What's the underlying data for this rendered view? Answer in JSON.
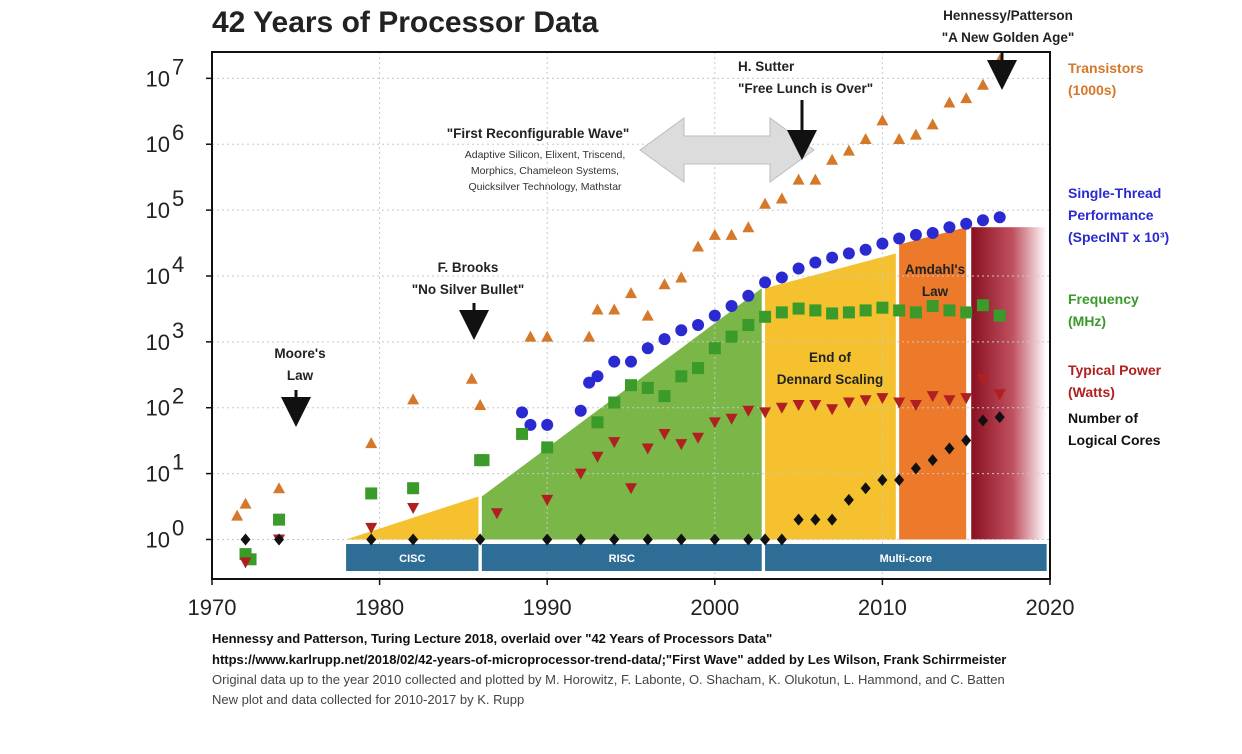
{
  "chart_data": {
    "type": "scatter",
    "title": "42 Years of Processor Data",
    "xlim": [
      1970,
      2020
    ],
    "ylim_log10": [
      -0.6,
      7.4
    ],
    "x_ticks": [
      "1970",
      "1980",
      "1990",
      "2000",
      "2010",
      "2020"
    ],
    "y_ticks": [
      {
        "base": "10",
        "exp": "0"
      },
      {
        "base": "10",
        "exp": "1"
      },
      {
        "base": "10",
        "exp": "2"
      },
      {
        "base": "10",
        "exp": "3"
      },
      {
        "base": "10",
        "exp": "4"
      },
      {
        "base": "10",
        "exp": "5"
      },
      {
        "base": "10",
        "exp": "6"
      },
      {
        "base": "10",
        "exp": "7"
      }
    ],
    "legend": [
      {
        "lines": [
          "Transistors",
          "(1000s)"
        ],
        "color": "#d4782a"
      },
      {
        "lines": [
          "Single-Thread",
          "Performance",
          "(SpecINT x 10³)"
        ],
        "color": "#2a2ad0"
      },
      {
        "lines": [
          "Frequency",
          "(MHz)"
        ],
        "color": "#3a9a2a"
      },
      {
        "lines": [
          "Typical Power",
          "(Watts)"
        ],
        "color": "#b02020"
      },
      {
        "lines": [
          "Number of",
          "Logical Cores"
        ],
        "color": "#111111"
      }
    ],
    "eras": [
      {
        "label": "CISC",
        "from": 1978,
        "to": 1985.9
      },
      {
        "label": "RISC",
        "from": 1986.1,
        "to": 2002.8
      },
      {
        "label": "Multi-core",
        "from": 2003,
        "to": 2019.8
      }
    ],
    "region_labels": {
      "dennard": [
        "End of",
        "Dennard Scaling"
      ],
      "amdahl": [
        "Amdahl's",
        "Law"
      ]
    },
    "annotations": {
      "moore": [
        "Moore's",
        "Law"
      ],
      "brooks": [
        "F. Brooks",
        "\"No Silver Bullet\""
      ],
      "sutter": [
        "H. Sutter",
        "\"Free Lunch is Over\""
      ],
      "hp": [
        "Hennessy/Patterson",
        "\"A New Golden Age\""
      ],
      "wave_title": "\"First Reconfigurable Wave\"",
      "wave_lines": [
        "Adaptive Silicon, Elixent, Triscend,",
        "Morphics, Chameleon Systems,",
        "Quicksilver Technology, Mathstar"
      ]
    },
    "series": [
      {
        "name": "Transistors (1000s)",
        "color": "#d4782a",
        "marker": "triangle",
        "points": [
          [
            1971.5,
            2.3
          ],
          [
            1972,
            3.5
          ],
          [
            1974,
            6
          ],
          [
            1979.5,
            29
          ],
          [
            1982,
            134
          ],
          [
            1985.5,
            275
          ],
          [
            1986,
            110
          ],
          [
            1989,
            1200
          ],
          [
            1990,
            1200
          ],
          [
            1992.5,
            1200
          ],
          [
            1993,
            3100
          ],
          [
            1994,
            3100
          ],
          [
            1995,
            5500
          ],
          [
            1996,
            2500
          ],
          [
            1997,
            7500
          ],
          [
            1998,
            9500
          ],
          [
            1999,
            28000
          ],
          [
            2000,
            42000
          ],
          [
            2001,
            42000
          ],
          [
            2002,
            55000
          ],
          [
            2003,
            125000
          ],
          [
            2004,
            150000
          ],
          [
            2005,
            290000
          ],
          [
            2006,
            290000
          ],
          [
            2007,
            580000
          ],
          [
            2008,
            800000
          ],
          [
            2009,
            1200000
          ],
          [
            2010,
            2300000
          ],
          [
            2011,
            1200000
          ],
          [
            2012,
            1400000
          ],
          [
            2013,
            2000000
          ],
          [
            2014,
            4300000
          ],
          [
            2015,
            5000000
          ],
          [
            2016,
            8000000
          ],
          [
            2017,
            19000000
          ]
        ]
      },
      {
        "name": "Single-Thread Performance",
        "color": "#2a2ad0",
        "marker": "circle",
        "points": [
          [
            1988.5,
            85
          ],
          [
            1989,
            55
          ],
          [
            1990,
            55
          ],
          [
            1992,
            90
          ],
          [
            1992.5,
            240
          ],
          [
            1993,
            300
          ],
          [
            1994,
            500
          ],
          [
            1995,
            500
          ],
          [
            1996,
            800
          ],
          [
            1997,
            1100
          ],
          [
            1998,
            1500
          ],
          [
            1999,
            1800
          ],
          [
            2000,
            2500
          ],
          [
            2001,
            3500
          ],
          [
            2002,
            5000
          ],
          [
            2003,
            8000
          ],
          [
            2004,
            9500
          ],
          [
            2005,
            13000
          ],
          [
            2006,
            16000
          ],
          [
            2007,
            19000
          ],
          [
            2008,
            22000
          ],
          [
            2009,
            25000
          ],
          [
            2010,
            31000
          ],
          [
            2011,
            37000
          ],
          [
            2012,
            42000
          ],
          [
            2013,
            45000
          ],
          [
            2014,
            55000
          ],
          [
            2015,
            62000
          ],
          [
            2016,
            70000
          ],
          [
            2017,
            78000
          ]
        ]
      },
      {
        "name": "Frequency (MHz)",
        "color": "#3a9a2a",
        "marker": "square",
        "points": [
          [
            1972,
            0.6
          ],
          [
            1972.3,
            0.5
          ],
          [
            1974,
            2
          ],
          [
            1979.5,
            5
          ],
          [
            1982,
            6
          ],
          [
            1986,
            16
          ],
          [
            1986.2,
            16
          ],
          [
            1988.5,
            40
          ],
          [
            1990,
            25
          ],
          [
            1993,
            60
          ],
          [
            1994,
            120
          ],
          [
            1995,
            220
          ],
          [
            1996,
            200
          ],
          [
            1997,
            150
          ],
          [
            1998,
            300
          ],
          [
            1999,
            400
          ],
          [
            2000,
            800
          ],
          [
            2001,
            1200
          ],
          [
            2002,
            1800
          ],
          [
            2003,
            2400
          ],
          [
            2004,
            2800
          ],
          [
            2005,
            3200
          ],
          [
            2006,
            3000
          ],
          [
            2007,
            2700
          ],
          [
            2008,
            2800
          ],
          [
            2009,
            3000
          ],
          [
            2010,
            3300
          ],
          [
            2011,
            3000
          ],
          [
            2012,
            2800
          ],
          [
            2013,
            3500
          ],
          [
            2014,
            3000
          ],
          [
            2015,
            2800
          ],
          [
            2016,
            3600
          ],
          [
            2017,
            2500
          ]
        ]
      },
      {
        "name": "Typical Power (Watts)",
        "color": "#b02020",
        "marker": "triangle-down",
        "points": [
          [
            1972,
            0.45
          ],
          [
            1974,
            1
          ],
          [
            1979.5,
            1.5
          ],
          [
            1982,
            3
          ],
          [
            1987,
            2.5
          ],
          [
            1990,
            4
          ],
          [
            1992,
            10
          ],
          [
            1993,
            18
          ],
          [
            1994,
            30
          ],
          [
            1995,
            6
          ],
          [
            1996,
            24
          ],
          [
            1997,
            40
          ],
          [
            1998,
            28
          ],
          [
            1999,
            35
          ],
          [
            2000,
            60
          ],
          [
            2001,
            68
          ],
          [
            2002,
            90
          ],
          [
            2003,
            85
          ],
          [
            2004,
            100
          ],
          [
            2005,
            110
          ],
          [
            2006,
            110
          ],
          [
            2007,
            95
          ],
          [
            2008,
            120
          ],
          [
            2009,
            130
          ],
          [
            2010,
            140
          ],
          [
            2011,
            120
          ],
          [
            2012,
            110
          ],
          [
            2013,
            150
          ],
          [
            2014,
            130
          ],
          [
            2015,
            140
          ],
          [
            2016,
            270
          ],
          [
            2017,
            160
          ]
        ]
      },
      {
        "name": "Number of Logical Cores",
        "color": "#111111",
        "marker": "diamond",
        "points": [
          [
            1972,
            1
          ],
          [
            1974,
            1
          ],
          [
            1979.5,
            1
          ],
          [
            1982,
            1
          ],
          [
            1986,
            1
          ],
          [
            1990,
            1
          ],
          [
            1992,
            1
          ],
          [
            1994,
            1
          ],
          [
            1996,
            1
          ],
          [
            1998,
            1
          ],
          [
            2000,
            1
          ],
          [
            2002,
            1
          ],
          [
            2003,
            1
          ],
          [
            2004,
            1
          ],
          [
            2005,
            2
          ],
          [
            2006,
            2
          ],
          [
            2007,
            2
          ],
          [
            2008,
            4
          ],
          [
            2009,
            6
          ],
          [
            2010,
            8
          ],
          [
            2011,
            8
          ],
          [
            2012,
            12
          ],
          [
            2013,
            16
          ],
          [
            2014,
            24
          ],
          [
            2015,
            32
          ],
          [
            2016,
            64
          ],
          [
            2017,
            72
          ]
        ]
      }
    ]
  },
  "credits": [
    "Hennessy and Patterson, Turing Lecture 2018, overlaid over \"42 Years of Processors Data\"",
    "https://www.karlrupp.net/2018/02/42-years-of-microprocessor-trend-data/;\"First Wave\" added by Les Wilson, Frank Schirrmeister",
    "Original data up to the year 2010 collected and plotted by M. Horowitz, F. Labonte, O. Shacham, K. Olukotun, L. Hammond, and C. Batten",
    "New plot and data collected for 2010-2017 by K. Rupp"
  ]
}
